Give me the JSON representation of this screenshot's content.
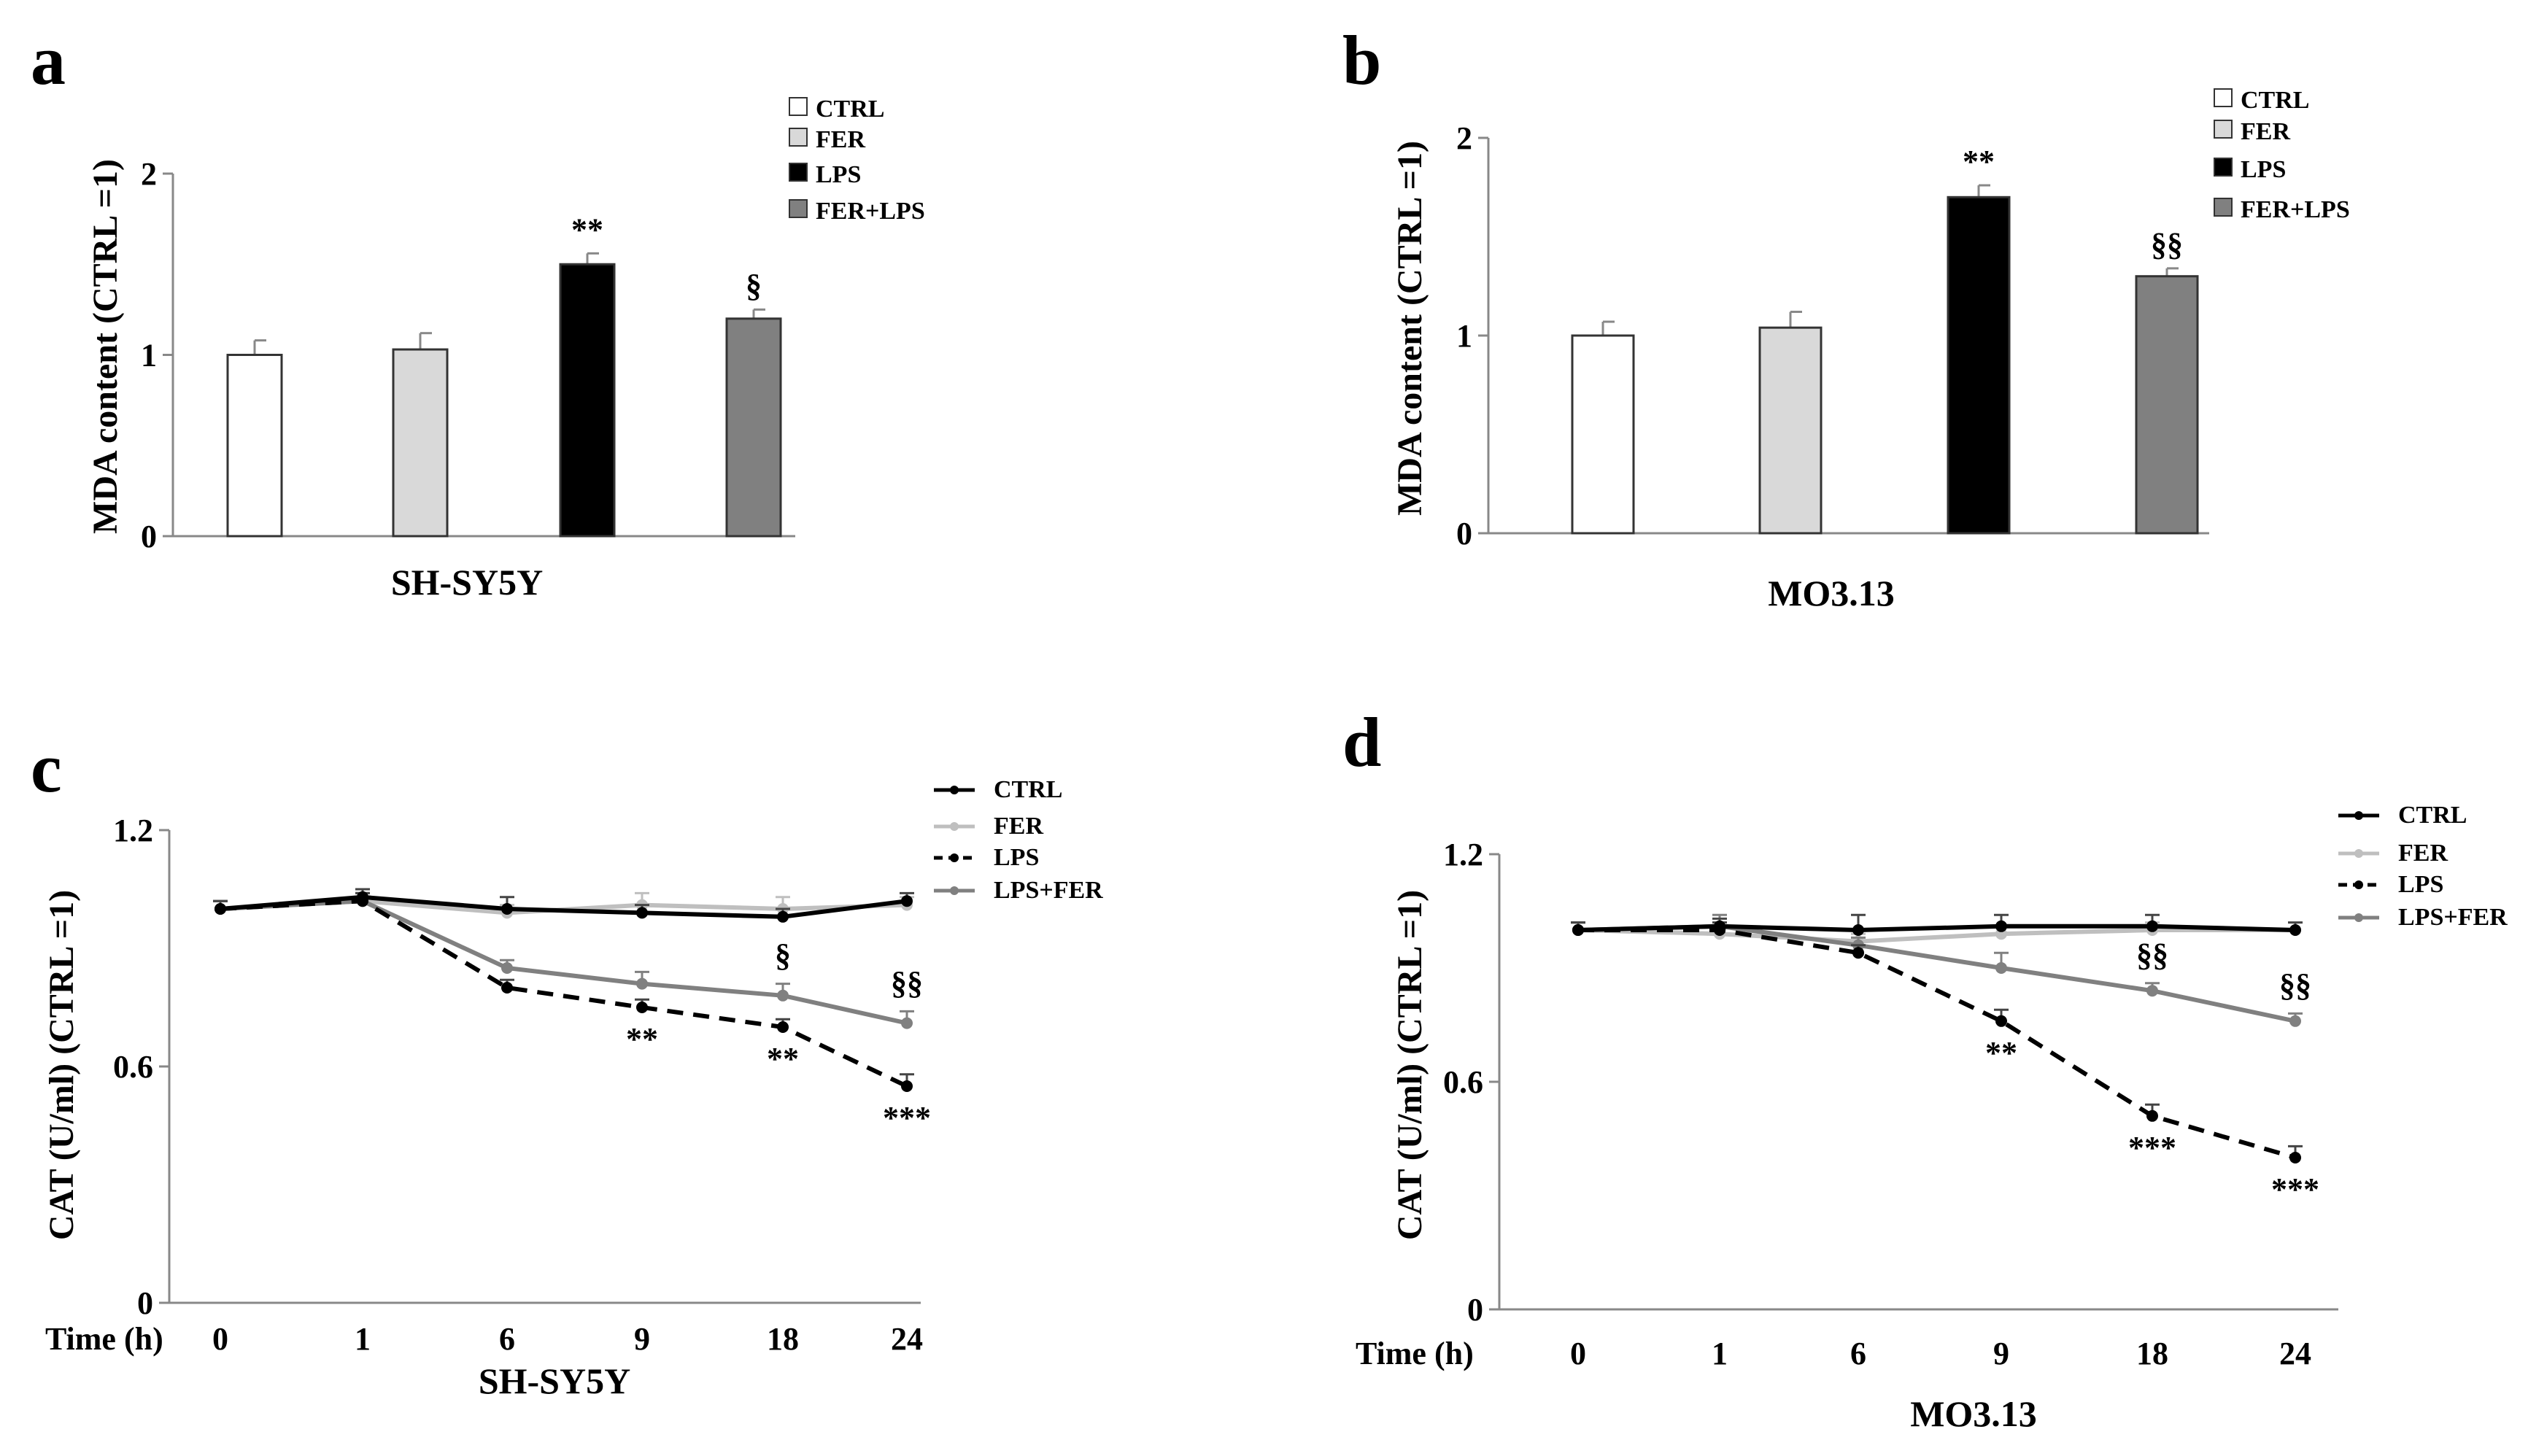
{
  "chart_data": [
    {
      "type": "bar",
      "panel": "a",
      "xlabel": "SH-SY5Y",
      "ylabel": "MDA content (CTRL =1)",
      "yticks": [
        "0",
        "1",
        "2"
      ],
      "ylim": [
        0,
        2
      ],
      "categories": [
        "CTRL",
        "FER",
        "LPS",
        "FER+LPS"
      ],
      "values": [
        1.0,
        1.03,
        1.5,
        1.2
      ],
      "errors": [
        0.08,
        0.09,
        0.06,
        0.05
      ],
      "colors": [
        "#ffffff",
        "#d9d9d9",
        "#000000",
        "#808080"
      ],
      "annotations": [
        "",
        "",
        "**",
        "§"
      ],
      "legend": [
        "CTRL",
        "FER",
        "LPS",
        "FER+LPS"
      ]
    },
    {
      "type": "bar",
      "panel": "b",
      "xlabel": "MO3.13",
      "ylabel": "MDA content (CTRL =1)",
      "yticks": [
        "0",
        "1",
        "2"
      ],
      "ylim": [
        0,
        2
      ],
      "categories": [
        "CTRL",
        "FER",
        "LPS",
        "FER+LPS"
      ],
      "values": [
        1.0,
        1.04,
        1.7,
        1.3
      ],
      "errors": [
        0.07,
        0.08,
        0.06,
        0.04
      ],
      "colors": [
        "#ffffff",
        "#d9d9d9",
        "#000000",
        "#808080"
      ],
      "annotations": [
        "",
        "",
        "**",
        "§§"
      ],
      "legend": [
        "CTRL",
        "FER",
        "LPS",
        "FER+LPS"
      ]
    },
    {
      "type": "line",
      "panel": "c",
      "xlabel": "SH-SY5Y",
      "time_label": "Time (h)",
      "ylabel": "CAT (U/ml) (CTRL =1)",
      "yticks": [
        "0",
        "0.6",
        "1.2"
      ],
      "ylim": [
        0,
        1.2
      ],
      "x": [
        "0",
        "1",
        "6",
        "9",
        "18",
        "24"
      ],
      "series": [
        {
          "name": "CTRL",
          "color": "#000000",
          "dash": false,
          "values": [
            1.0,
            1.03,
            1.0,
            0.99,
            0.98,
            1.02
          ],
          "errors": [
            0.02,
            0.02,
            0.03,
            0.02,
            0.02,
            0.02
          ]
        },
        {
          "name": "FER",
          "color": "#bfbfbf",
          "dash": false,
          "values": [
            1.0,
            1.02,
            0.99,
            1.01,
            1.0,
            1.01
          ],
          "errors": [
            0.02,
            0.02,
            0.02,
            0.03,
            0.03,
            0.02
          ]
        },
        {
          "name": "LPS",
          "color": "#000000",
          "dash": true,
          "values": [
            1.0,
            1.02,
            0.8,
            0.75,
            0.7,
            0.55
          ],
          "errors": [
            0.02,
            0.02,
            0.02,
            0.02,
            0.02,
            0.03
          ]
        },
        {
          "name": "LPS+FER",
          "color": "#808080",
          "dash": false,
          "values": [
            1.0,
            1.02,
            0.85,
            0.81,
            0.78,
            0.71
          ],
          "errors": [
            0.02,
            0.02,
            0.02,
            0.03,
            0.03,
            0.03
          ]
        }
      ],
      "annotations_above": [
        "",
        "",
        "",
        "",
        "§",
        "§§"
      ],
      "annotations_below": [
        "",
        "",
        "",
        "**",
        "**",
        "***"
      ]
    },
    {
      "type": "line",
      "panel": "d",
      "xlabel": "MO3.13",
      "time_label": "Time (h)",
      "ylabel": "CAT (U/ml) (CTRL =1)",
      "yticks": [
        "0",
        "0.6",
        "1.2"
      ],
      "ylim": [
        0,
        1.2
      ],
      "x": [
        "0",
        "1",
        "6",
        "9",
        "18",
        "24"
      ],
      "series": [
        {
          "name": "CTRL",
          "color": "#000000",
          "dash": false,
          "values": [
            1.0,
            1.01,
            1.0,
            1.01,
            1.01,
            1.0
          ],
          "errors": [
            0.02,
            0.02,
            0.04,
            0.03,
            0.03,
            0.02
          ]
        },
        {
          "name": "FER",
          "color": "#bfbfbf",
          "dash": false,
          "values": [
            1.0,
            0.99,
            0.97,
            0.99,
            1.0,
            1.0
          ],
          "errors": [
            0.02,
            0.03,
            0.02,
            0.02,
            0.02,
            0.02
          ]
        },
        {
          "name": "LPS",
          "color": "#000000",
          "dash": true,
          "values": [
            1.0,
            1.0,
            0.94,
            0.76,
            0.51,
            0.4
          ],
          "errors": [
            0.02,
            0.02,
            0.02,
            0.03,
            0.03,
            0.03
          ]
        },
        {
          "name": "LPS+FER",
          "color": "#808080",
          "dash": false,
          "values": [
            1.0,
            1.01,
            0.96,
            0.9,
            0.84,
            0.76
          ],
          "errors": [
            0.02,
            0.03,
            0.02,
            0.04,
            0.02,
            0.02
          ]
        }
      ],
      "annotations_above": [
        "",
        "",
        "",
        "",
        "§§",
        "§§"
      ],
      "annotations_below": [
        "",
        "",
        "",
        "**",
        "***",
        "***"
      ]
    }
  ]
}
